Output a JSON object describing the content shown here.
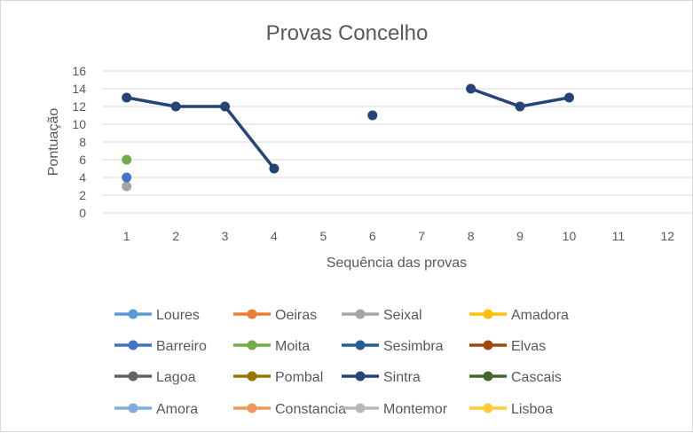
{
  "chart_data": {
    "type": "line",
    "title": "Provas Concelho",
    "xlabel": "Sequência das provas",
    "ylabel": "Pontuação",
    "x": [
      1,
      2,
      3,
      4,
      5,
      6,
      7,
      8,
      9,
      10,
      11,
      12
    ],
    "ylim": [
      0,
      16
    ],
    "yticks": [
      0,
      2,
      4,
      6,
      8,
      10,
      12,
      14,
      16
    ],
    "grid": true,
    "legend_position": "bottom",
    "series": [
      {
        "name": "Loures",
        "color": "#5B9BD5",
        "values": [
          null,
          null,
          null,
          null,
          null,
          null,
          null,
          null,
          null,
          null,
          null,
          null
        ]
      },
      {
        "name": "Oeiras",
        "color": "#ED7D31",
        "values": [
          null,
          null,
          null,
          null,
          null,
          null,
          null,
          null,
          null,
          null,
          null,
          null
        ]
      },
      {
        "name": "Seixal",
        "color": "#A5A5A5",
        "values": [
          3,
          null,
          null,
          null,
          null,
          null,
          null,
          null,
          null,
          null,
          null,
          null
        ]
      },
      {
        "name": "Amadora",
        "color": "#FFC000",
        "values": [
          null,
          null,
          null,
          null,
          null,
          null,
          null,
          null,
          null,
          null,
          null,
          null
        ]
      },
      {
        "name": "Barreiro",
        "color": "#4472C4",
        "values": [
          4,
          null,
          null,
          null,
          null,
          null,
          null,
          null,
          null,
          null,
          null,
          null
        ]
      },
      {
        "name": "Moita",
        "color": "#70AD47",
        "values": [
          6,
          null,
          null,
          null,
          null,
          null,
          null,
          null,
          null,
          null,
          null,
          null
        ]
      },
      {
        "name": "Sesimbra",
        "color": "#255E91",
        "values": [
          null,
          null,
          null,
          null,
          null,
          null,
          null,
          null,
          null,
          null,
          null,
          null
        ]
      },
      {
        "name": "Elvas",
        "color": "#9E480E",
        "values": [
          null,
          null,
          null,
          null,
          null,
          null,
          null,
          null,
          null,
          null,
          null,
          null
        ]
      },
      {
        "name": "Lagoa",
        "color": "#636363",
        "values": [
          null,
          null,
          null,
          null,
          null,
          null,
          null,
          null,
          null,
          null,
          null,
          null
        ]
      },
      {
        "name": "Pombal",
        "color": "#997300",
        "values": [
          null,
          null,
          null,
          null,
          null,
          null,
          null,
          null,
          null,
          null,
          null,
          null
        ]
      },
      {
        "name": "Sintra",
        "color": "#264478",
        "values": [
          13,
          12,
          12,
          5,
          null,
          11,
          null,
          14,
          12,
          13,
          null,
          null
        ]
      },
      {
        "name": "Cascais",
        "color": "#43682B",
        "values": [
          null,
          null,
          null,
          null,
          null,
          null,
          null,
          null,
          null,
          null,
          null,
          null
        ]
      },
      {
        "name": "Amora",
        "color": "#7CAFDD",
        "values": [
          null,
          null,
          null,
          null,
          null,
          null,
          null,
          null,
          null,
          null,
          null,
          null
        ]
      },
      {
        "name": "Constancia",
        "color": "#F1975A",
        "values": [
          null,
          null,
          null,
          null,
          null,
          null,
          null,
          null,
          null,
          null,
          null,
          null
        ]
      },
      {
        "name": "Montemor",
        "color": "#B7B7B7",
        "values": [
          null,
          null,
          null,
          null,
          null,
          null,
          null,
          null,
          null,
          null,
          null,
          null
        ]
      },
      {
        "name": "Lisboa",
        "color": "#FFCD33",
        "values": [
          null,
          null,
          null,
          null,
          null,
          null,
          null,
          null,
          null,
          null,
          null,
          null
        ]
      }
    ]
  }
}
